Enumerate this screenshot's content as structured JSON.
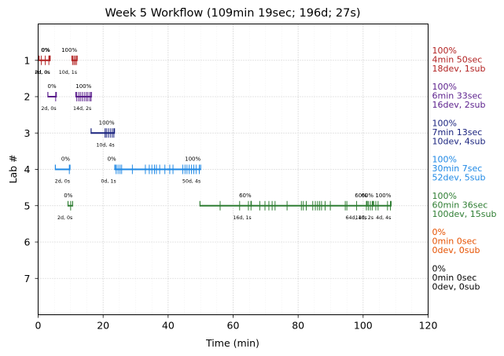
{
  "chart_data": {
    "type": "timeline",
    "title": "Week 5 Workflow (109min 19sec; 196d; 27s)",
    "xlabel": "Time (min)",
    "ylabel": "Lab #",
    "xlim": [
      0,
      120
    ],
    "ylim": [
      8,
      0
    ],
    "xticks": [
      0,
      20,
      40,
      60,
      80,
      100,
      120
    ],
    "yticks": [
      1,
      2,
      3,
      4,
      5,
      6,
      7
    ],
    "grid": true,
    "labs": [
      {
        "lab": 1,
        "color": "#b22222",
        "summary": [
          "100%",
          "4min 50sec",
          "18dev, 1sub"
        ],
        "segments": [
          {
            "start": 0.3,
            "end": 3.6,
            "pct": "0%",
            "note": "2d, 0s",
            "events": [
              1.0,
              2.2,
              3.3
            ]
          },
          {
            "start": 3.5,
            "end": 3.7,
            "pct": "0%",
            "note": "0d, 0s",
            "events": []
          },
          {
            "start": 10.4,
            "end": 12.0,
            "pct": "100%",
            "note": "10d, 1s",
            "events": [
              10.6,
              11.0,
              11.4,
              11.8
            ]
          }
        ]
      },
      {
        "lab": 2,
        "color": "#5b1f8c",
        "summary": [
          "100%",
          "6min 33sec",
          "16dev, 2sub"
        ],
        "segments": [
          {
            "start": 3.0,
            "end": 5.6,
            "pct": "0%",
            "note": "2d, 0s",
            "events": [
              5.4
            ]
          },
          {
            "start": 11.6,
            "end": 16.4,
            "pct": "100%",
            "note": "14d, 2s",
            "events": [
              11.9,
              12.5,
              13.0,
              13.6,
              14.2,
              14.8,
              15.3,
              15.9,
              16.3
            ]
          }
        ]
      },
      {
        "lab": 3,
        "color": "#1a237e",
        "summary": [
          "100%",
          "7min 13sec",
          "10dev, 4sub"
        ],
        "segments": [
          {
            "start": 16.3,
            "end": 23.5,
            "pct": "100%",
            "note": "10d, 4s",
            "events": [
              20.6,
              21.0,
              21.6,
              22.2,
              22.8,
              23.3
            ]
          }
        ]
      },
      {
        "lab": 4,
        "color": "#1e88e5",
        "summary": [
          "100%",
          "30min 7sec",
          "52dev, 5sub"
        ],
        "segments": [
          {
            "start": 5.3,
            "end": 9.8,
            "pct": "0%",
            "note": "2d, 0s",
            "events": [
              9.6
            ]
          },
          {
            "start": 23.6,
            "end": 24.0,
            "pct": "0%",
            "note": "0d, 1s",
            "events": [
              24.0
            ]
          },
          {
            "start": 23.6,
            "end": 50.0,
            "pct": "100%",
            "note": "50d, 4s",
            "events": [
              24.6,
              25.2,
              25.7,
              29.0,
              33.0,
              34.2,
              35.0,
              35.8,
              36.4,
              37.4,
              39.0,
              40.5,
              41.5,
              44.5,
              45.2,
              45.8,
              46.5,
              47.2,
              47.9,
              48.6,
              49.6
            ]
          }
        ]
      },
      {
        "lab": 5,
        "color": "#2e7d32",
        "summary": [
          "100%",
          "60min 36sec",
          "100dev, 15sub"
        ],
        "segments": [
          {
            "start": 9.2,
            "end": 10.6,
            "pct": "0%",
            "note": "2d, 0s",
            "events": [
              10.0
            ]
          },
          {
            "start": 49.8,
            "end": 65.6,
            "pct": "60%",
            "note": "16d, 1s",
            "events": [
              56.0,
              62.0,
              64.7,
              65.5
            ]
          },
          {
            "start": 65.5,
            "end": 101.2,
            "pct": "60%",
            "note": "64d, 10s",
            "events": [
              68.2,
              69.8,
              71.0,
              72.0,
              72.9,
              76.6,
              81.0,
              81.6,
              82.5,
              84.5,
              85.3,
              86.0,
              86.6,
              87.2,
              88.3,
              89.9,
              94.5,
              95.0,
              98.0,
              101.0
            ]
          },
          {
            "start": 101.2,
            "end": 103.2,
            "pct": "60%",
            "note": "14d, 2s",
            "events": [
              101.6,
              102.2,
              102.8
            ]
          },
          {
            "start": 103.0,
            "end": 108.6,
            "pct": "100%",
            "note": "4d, 4s",
            "events": [
              103.9,
              104.6,
              107.5,
              108.4
            ]
          }
        ]
      },
      {
        "lab": 6,
        "color": "#e65100",
        "summary": [
          "0%",
          "0min 0sec",
          "0dev, 0sub"
        ],
        "segments": []
      },
      {
        "lab": 7,
        "color": "#000000",
        "summary": [
          "0%",
          "0min 0sec",
          "0dev, 0sub"
        ],
        "segments": []
      }
    ]
  }
}
